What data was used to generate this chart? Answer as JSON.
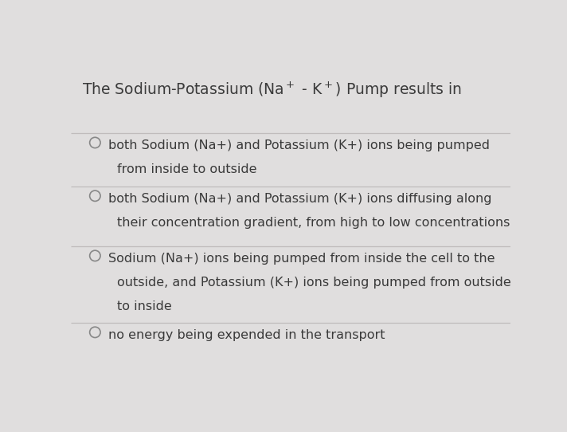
{
  "title_raw": "The Sodium-Potassium (Na$^+$ - K$^+$) Pump results in",
  "background_color": "#e0dede",
  "text_color": "#3a3a3a",
  "divider_color": "#c0bcbc",
  "options": [
    {
      "lines": [
        "both Sodium (Na+) and Potassium (K+) ions being pumped",
        "from inside to outside"
      ]
    },
    {
      "lines": [
        "both Sodium (Na+) and Potassium (K+) ions diffusing along",
        "their concentration gradient, from high to low concentrations"
      ]
    },
    {
      "lines": [
        "Sodium (Na+) ions being pumped from inside the cell to the",
        "outside, and Potassium (K+) ions being pumped from outside",
        "to inside"
      ]
    },
    {
      "lines": [
        "no energy being expended in the transport"
      ]
    }
  ],
  "title_fontsize": 13.5,
  "option_fontsize": 11.5,
  "figsize": [
    7.12,
    5.42
  ],
  "dpi": 100
}
